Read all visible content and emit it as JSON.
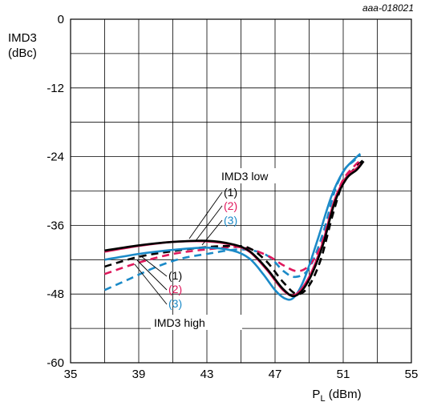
{
  "chart_data": {
    "type": "line",
    "reference": "aaa-018021",
    "ylabel_line1": "IMD3",
    "ylabel_line2": "(dBc)",
    "xlabel_main": "P",
    "xlabel_sub": "L",
    "xlabel_unit": " (dBm)",
    "xlim": [
      35,
      55
    ],
    "ylim": [
      -60,
      0
    ],
    "xticks": [
      35,
      39,
      43,
      47,
      51,
      55
    ],
    "yticks": [
      0,
      -12,
      -24,
      -36,
      -48,
      -60
    ],
    "grid_x_step": 2,
    "grid_y_step": 6,
    "colors": {
      "1": "#000000",
      "2": "#e0185c",
      "3": "#1b8ac8"
    },
    "series": [
      {
        "id": "low-1",
        "group": "low",
        "label": "(1)",
        "color": "#000000",
        "style": "solid",
        "points": [
          [
            37,
            -40.4
          ],
          [
            39,
            -39.5
          ],
          [
            41,
            -38.9
          ],
          [
            43,
            -38.7
          ],
          [
            44.5,
            -39.3
          ],
          [
            45.5,
            -40.5
          ],
          [
            46.5,
            -43.5
          ],
          [
            47.5,
            -47.2
          ],
          [
            48.2,
            -48.3
          ],
          [
            49,
            -45.5
          ],
          [
            49.8,
            -39.5
          ],
          [
            50.5,
            -32
          ],
          [
            51.2,
            -27.8
          ],
          [
            51.8,
            -26.3
          ],
          [
            52.2,
            -24.8
          ]
        ]
      },
      {
        "id": "low-2",
        "group": "low",
        "label": "(2)",
        "color": "#e0185c",
        "style": "solid",
        "points": [
          [
            37,
            -40.6
          ],
          [
            39,
            -39.6
          ],
          [
            41,
            -38.9
          ],
          [
            43,
            -38.8
          ],
          [
            44.5,
            -39.4
          ],
          [
            45.5,
            -40.6
          ],
          [
            46.5,
            -43.7
          ],
          [
            47.5,
            -47.4
          ],
          [
            48.2,
            -48.1
          ],
          [
            49,
            -45
          ],
          [
            49.8,
            -39
          ],
          [
            50.5,
            -31.5
          ],
          [
            51.2,
            -27.5
          ],
          [
            51.8,
            -26
          ],
          [
            52,
            -25.2
          ]
        ]
      },
      {
        "id": "low-3",
        "group": "low",
        "label": "(3)",
        "color": "#1b8ac8",
        "style": "solid",
        "points": [
          [
            37,
            -42
          ],
          [
            39,
            -41
          ],
          [
            41,
            -40.3
          ],
          [
            43,
            -39.9
          ],
          [
            44.5,
            -40.4
          ],
          [
            45.5,
            -41.8
          ],
          [
            46.3,
            -44.5
          ],
          [
            47,
            -47.3
          ],
          [
            47.6,
            -48.8
          ],
          [
            48.1,
            -48.6
          ],
          [
            48.7,
            -45.5
          ],
          [
            49.5,
            -38.5
          ],
          [
            50.3,
            -31
          ],
          [
            51,
            -26.6
          ],
          [
            51.6,
            -24.6
          ],
          [
            52,
            -23.5
          ]
        ]
      },
      {
        "id": "high-1",
        "group": "high",
        "label": "(1)",
        "color": "#000000",
        "style": "dashed",
        "points": [
          [
            37,
            -43.2
          ],
          [
            39,
            -41.5
          ],
          [
            41,
            -40.5
          ],
          [
            43,
            -39.8
          ],
          [
            44.5,
            -39.6
          ],
          [
            45.5,
            -40
          ],
          [
            46.5,
            -42.3
          ],
          [
            47.5,
            -46
          ],
          [
            48.3,
            -48
          ],
          [
            49,
            -46.5
          ],
          [
            49.7,
            -41.8
          ],
          [
            50.4,
            -34
          ],
          [
            51,
            -28.5
          ],
          [
            51.7,
            -26
          ],
          [
            52.2,
            -24.5
          ]
        ]
      },
      {
        "id": "high-2",
        "group": "high",
        "label": "(2)",
        "color": "#e0185c",
        "style": "dashed",
        "points": [
          [
            37,
            -44.5
          ],
          [
            39,
            -42.5
          ],
          [
            41,
            -41
          ],
          [
            43,
            -40.2
          ],
          [
            45,
            -39.8
          ],
          [
            46.5,
            -41.2
          ],
          [
            47.5,
            -43
          ],
          [
            48.3,
            -44
          ],
          [
            49,
            -43
          ],
          [
            49.7,
            -39.5
          ],
          [
            50.4,
            -32.5
          ],
          [
            51,
            -28
          ],
          [
            51.7,
            -25.5
          ],
          [
            52,
            -24.7
          ]
        ]
      },
      {
        "id": "high-3",
        "group": "high",
        "label": "(3)",
        "color": "#1b8ac8",
        "style": "dashed",
        "points": [
          [
            37,
            -47.3
          ],
          [
            38.5,
            -45.3
          ],
          [
            40,
            -43.3
          ],
          [
            41.5,
            -41.8
          ],
          [
            43,
            -41
          ],
          [
            45,
            -40.2
          ],
          [
            46.5,
            -41.2
          ],
          [
            47.5,
            -44
          ],
          [
            48.2,
            -45
          ],
          [
            49,
            -43.5
          ],
          [
            49.8,
            -37.5
          ],
          [
            50.5,
            -30
          ],
          [
            51.1,
            -26.2
          ],
          [
            51.6,
            -24.8
          ],
          [
            52,
            -23.7
          ]
        ]
      }
    ],
    "annotations": {
      "low_title": "IMD3 low",
      "high_title": "IMD3 high",
      "low_labels": [
        "(1)",
        "(2)",
        "(3)"
      ],
      "high_labels": [
        "(1)",
        "(2)",
        "(3)"
      ]
    }
  }
}
